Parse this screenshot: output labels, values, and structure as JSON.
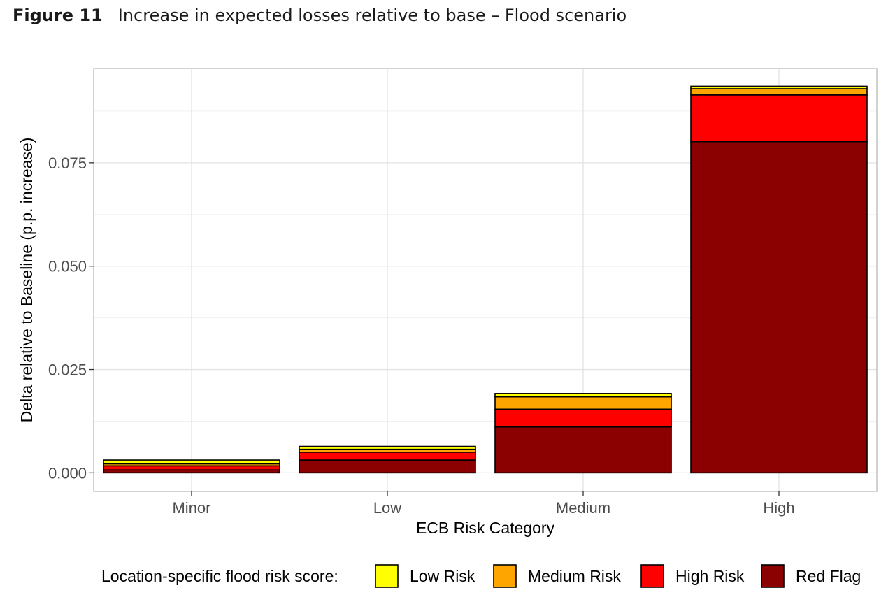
{
  "figure": {
    "label": "Figure 11",
    "title": "Increase in expected losses relative to base – Flood scenario"
  },
  "chart_data": {
    "type": "bar",
    "stacked": true,
    "categories": [
      "Minor",
      "Low",
      "Medium",
      "High"
    ],
    "series": [
      {
        "name": "Red Flag",
        "color": "#8B0000",
        "values": [
          0.0007,
          0.0031,
          0.0111,
          0.0801
        ]
      },
      {
        "name": "High Risk",
        "color": "#FF0000",
        "values": [
          0.001,
          0.0019,
          0.0043,
          0.0113
        ]
      },
      {
        "name": "Medium Risk",
        "color": "#FFA500",
        "values": [
          0.0005,
          0.0007,
          0.003,
          0.0015
        ]
      },
      {
        "name": "Low Risk",
        "color": "#FFFF00",
        "values": [
          0.0009,
          0.0007,
          0.0008,
          0.0006
        ]
      }
    ],
    "xlabel": "ECB Risk Category",
    "ylabel": "Delta relative to Baseline (p.p. increase)",
    "yticks": [
      0.0,
      0.025,
      0.05,
      0.075
    ],
    "ytick_labels": [
      "0.000",
      "0.025",
      "0.050",
      "0.075"
    ],
    "ylim": [
      -0.0045,
      0.0978
    ],
    "grid": true,
    "legend": {
      "title": "Location-specific flood risk score:",
      "position": "bottom",
      "entries": [
        {
          "name": "Low Risk",
          "color": "#FFFF00"
        },
        {
          "name": "Medium Risk",
          "color": "#FFA500"
        },
        {
          "name": "High Risk",
          "color": "#FF0000"
        },
        {
          "name": "Red Flag",
          "color": "#8B0000"
        }
      ]
    }
  }
}
